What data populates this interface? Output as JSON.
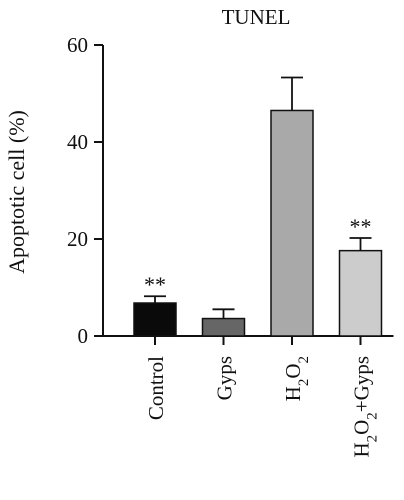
{
  "chart_data": {
    "type": "bar",
    "title": "TUNEL",
    "ylabel": "Apoptotic cell (%)",
    "xlabel": "",
    "ylim": [
      0,
      60
    ],
    "yticks": [
      0,
      20,
      40,
      60
    ],
    "categories": [
      {
        "label": "Control",
        "parts": [
          [
            "Control",
            ""
          ]
        ]
      },
      {
        "label": "Gyps",
        "parts": [
          [
            "Gyps",
            ""
          ]
        ]
      },
      {
        "label": "H2O2",
        "parts": [
          [
            "H",
            ""
          ],
          [
            "2",
            "sub"
          ],
          [
            "O",
            ""
          ],
          [
            "2",
            "sub"
          ]
        ]
      },
      {
        "label": "H2O2+Gyps",
        "parts": [
          [
            "H",
            ""
          ],
          [
            "2",
            "sub"
          ],
          [
            "O",
            ""
          ],
          [
            "2",
            "sub"
          ],
          [
            "+Gyps",
            ""
          ]
        ]
      }
    ],
    "values": [
      6.8,
      3.6,
      46.5,
      17.6
    ],
    "errors": [
      1.4,
      1.9,
      6.8,
      2.6
    ],
    "annotations": [
      "**",
      "",
      "",
      "**"
    ],
    "colors": [
      "#0a0a0a",
      "#666666",
      "#a9a9a9",
      "#cccccc"
    ],
    "grid": false,
    "legend": "none"
  }
}
